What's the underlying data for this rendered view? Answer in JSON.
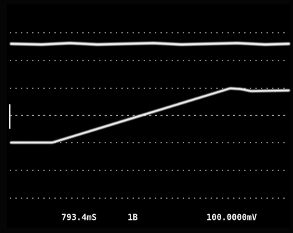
{
  "readout": {
    "timebase": "793.4mS",
    "channel": "1B",
    "scale": "100.0000mV"
  }
}
